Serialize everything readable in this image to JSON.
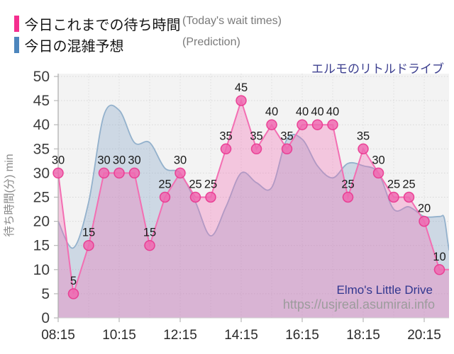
{
  "title": "エルモのリトルドライブ",
  "legend": {
    "today": {
      "label_jp": "今日これまでの待ち時間",
      "label_en": "(Today's wait times)",
      "color": "#f52e8f"
    },
    "prediction": {
      "label_jp": "今日の混雑予想",
      "label_en": "(Prediction)",
      "color": "#4d86bd"
    }
  },
  "watermark": {
    "name": "Elmo's Little Drive",
    "url": "https://usjreal.asumirai.info"
  },
  "y_axis": {
    "title": "待ち時間(分) min",
    "ticks": [
      0,
      5,
      10,
      15,
      20,
      25,
      30,
      35,
      40,
      45,
      50
    ]
  },
  "x_axis": {
    "tick_labels": [
      "08:15",
      "10:15",
      "12:15",
      "14:15",
      "16:15",
      "18:15",
      "20:15"
    ]
  },
  "chart_data": {
    "type": "area",
    "title": "エルモのリトルドライブ",
    "ylabel": "待ち時間(分) min",
    "ylim": [
      0,
      50
    ],
    "grid": "dotted",
    "legend_position": "top-left",
    "x": [
      "08:15",
      "08:45",
      "09:15",
      "09:45",
      "10:15",
      "10:45",
      "11:15",
      "11:45",
      "12:15",
      "12:45",
      "13:15",
      "13:45",
      "14:15",
      "14:45",
      "15:15",
      "15:45",
      "16:15",
      "16:45",
      "17:15",
      "17:45",
      "18:15",
      "18:45",
      "19:15",
      "19:45",
      "20:15",
      "20:45"
    ],
    "series": [
      {
        "name": "今日これまでの待ち時間 (Today's wait times)",
        "type": "area-linear",
        "color": "#f36eb2",
        "fill": "rgba(243,105,178,0.33)",
        "point_color": "#ee69b0",
        "labeled": true,
        "values": [
          30,
          5,
          15,
          30,
          30,
          30,
          15,
          25,
          30,
          25,
          25,
          35,
          45,
          35,
          40,
          35,
          40,
          40,
          40,
          25,
          35,
          30,
          25,
          25,
          20,
          10
        ]
      },
      {
        "name": "今日の混雑予想 (Prediction)",
        "type": "area-spline",
        "color": "#93b1cc",
        "fill": "rgba(120,155,195,0.30)",
        "labeled": false,
        "values": [
          20,
          14.5,
          24,
          42,
          43,
          36.3,
          36.3,
          31,
          30,
          24,
          17,
          23,
          30,
          28,
          27,
          37,
          37,
          31.5,
          29,
          32,
          31.5,
          30,
          22.5,
          23,
          21,
          21
        ]
      }
    ]
  }
}
